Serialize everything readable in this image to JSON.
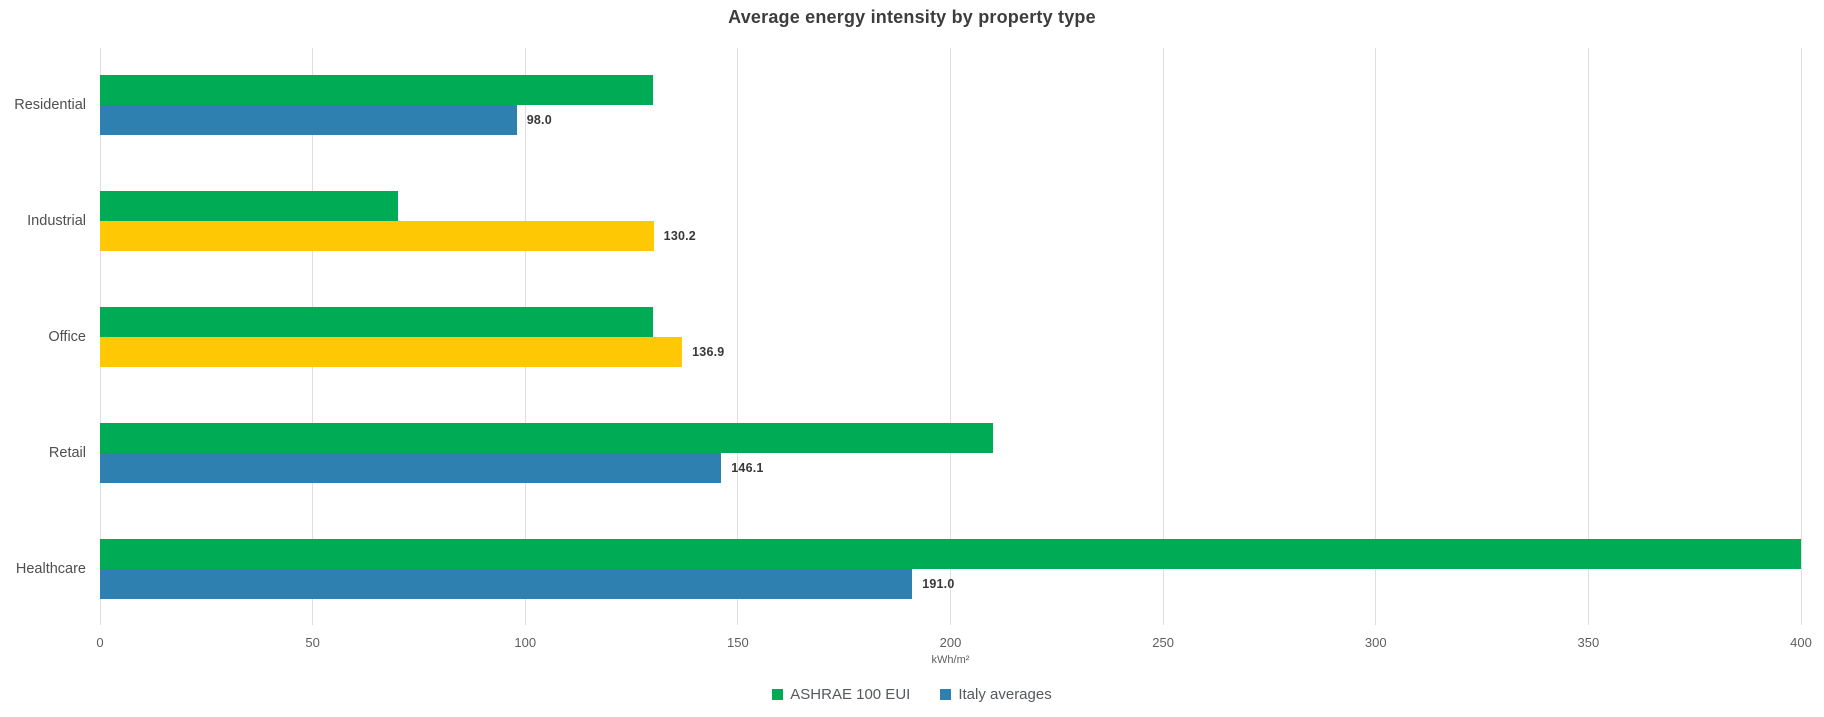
{
  "chart_data": {
    "type": "bar",
    "orientation": "horizontal",
    "title": "Average energy intensity by property type",
    "xlabel": "kWh/m²",
    "xlim": [
      0,
      400
    ],
    "xticks": [
      0,
      50,
      100,
      150,
      200,
      250,
      300,
      350,
      400
    ],
    "grid": "vertical",
    "legend_position": "bottom-center",
    "categories": [
      "Residential",
      "Industrial",
      "Office",
      "Retail",
      "Healthcare"
    ],
    "series": [
      {
        "name": "ASHRAE 100 EUI",
        "color": "#00ab55",
        "values": [
          130,
          70,
          130,
          210,
          400
        ],
        "value_labels": [
          "",
          "",
          "",
          "",
          ""
        ]
      },
      {
        "name": "Italy averages",
        "color": "#2e80b1",
        "exceed_color": "#ffc805",
        "values": [
          98.0,
          130.2,
          136.9,
          146.1,
          191.0
        ],
        "value_labels": [
          "98.0",
          "130.2",
          "136.9",
          "146.1",
          "191.0"
        ],
        "bar_colors": [
          "#2e80b1",
          "#ffc805",
          "#ffc805",
          "#2e80b1",
          "#2e80b1"
        ]
      }
    ],
    "legend": [
      {
        "label": "ASHRAE 100 EUI",
        "color": "#00ab55"
      },
      {
        "label": "Italy averages",
        "color": "#2e80b1"
      }
    ]
  },
  "colors": {
    "background": "#ffffff",
    "gridline": "#dcdee0",
    "title_text": "#3d3d3d",
    "axis_text": "#5e5e5e",
    "category_text": "#4f4f4f",
    "value_text": "#383838",
    "legend_text": "#55595b"
  }
}
